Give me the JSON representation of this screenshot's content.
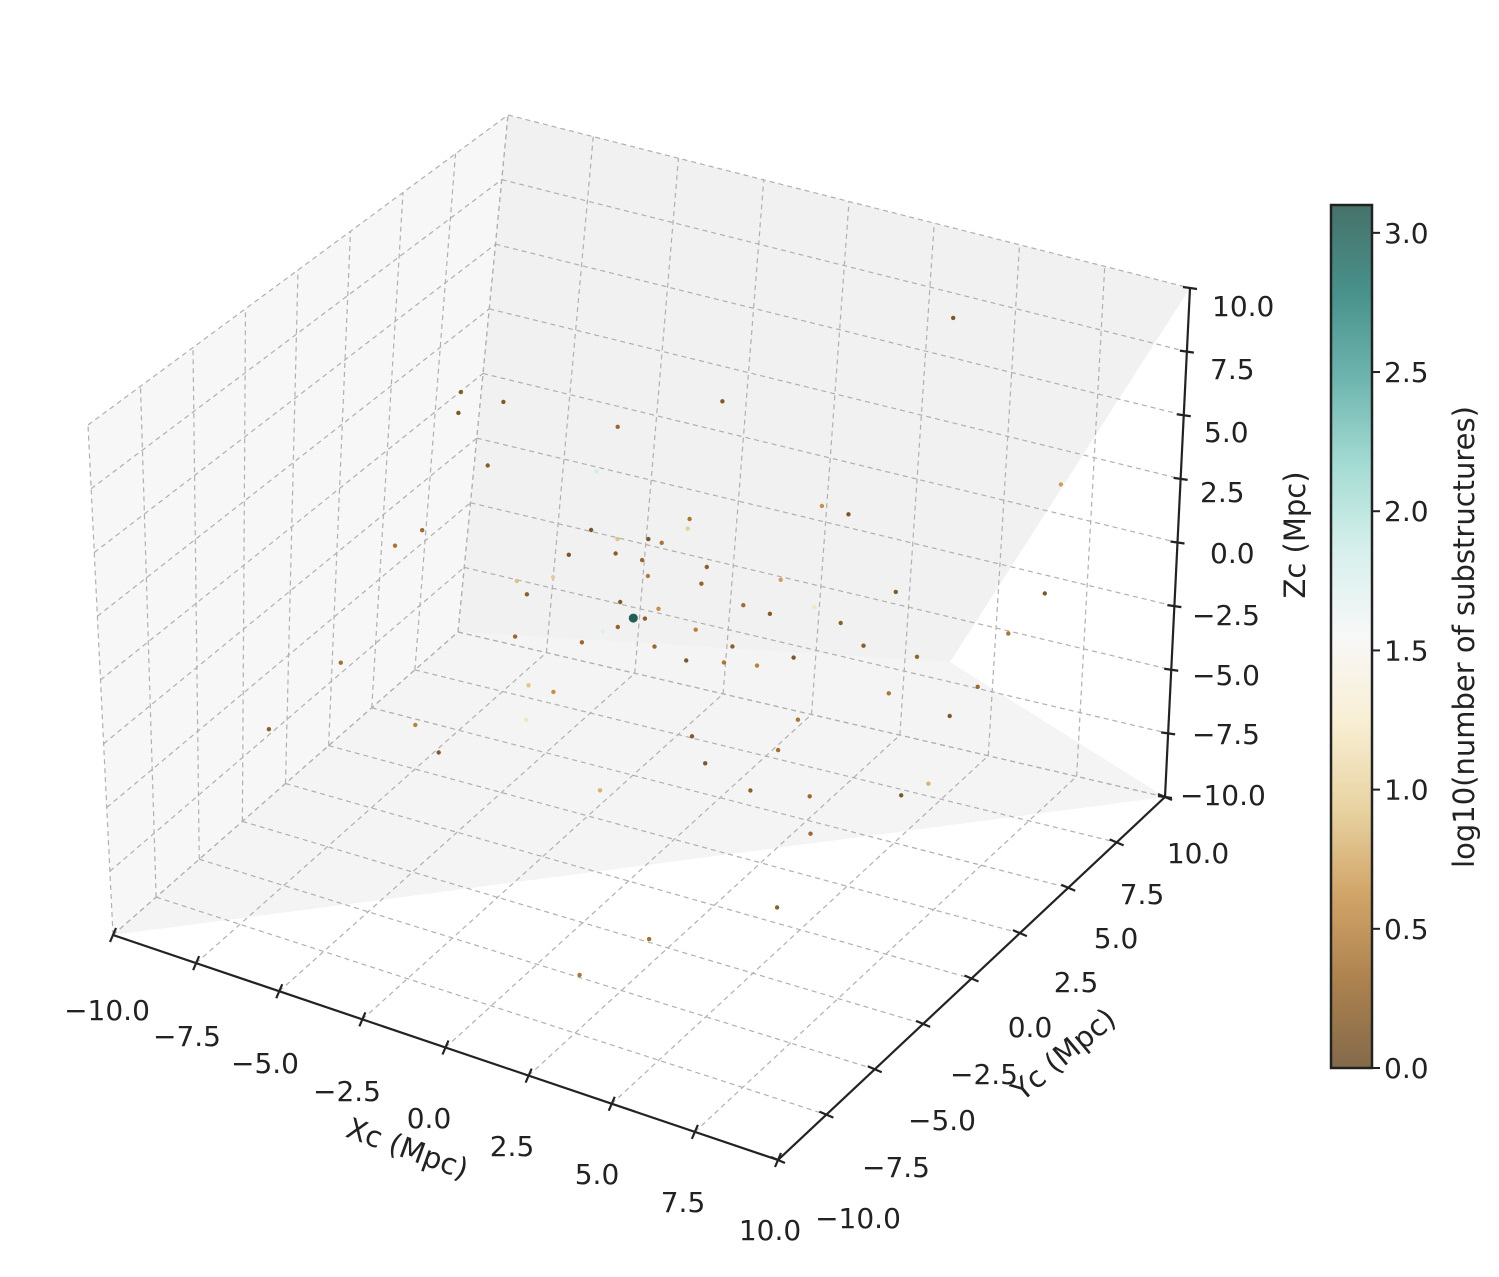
{
  "chart_data": {
    "type": "scatter3d",
    "axes": {
      "x": {
        "label": "Xc (Mpc)",
        "lim": [
          -10,
          10
        ],
        "ticks": [
          -10.0,
          -7.5,
          -5.0,
          -2.5,
          0.0,
          2.5,
          5.0,
          7.5,
          10.0
        ],
        "tick_labels": [
          "−10.0",
          "−7.5",
          "−5.0",
          "−2.5",
          "0.0",
          "2.5",
          "5.0",
          "7.5",
          "10.0"
        ]
      },
      "y": {
        "label": "Yc (Mpc)",
        "lim": [
          -10,
          10
        ],
        "ticks": [
          -10.0,
          -7.5,
          -5.0,
          -2.5,
          0.0,
          2.5,
          5.0,
          7.5,
          10.0
        ],
        "tick_labels": [
          "−10.0",
          "−7.5",
          "−5.0",
          "−2.5",
          "0.0",
          "2.5",
          "5.0",
          "7.5",
          "10.0"
        ]
      },
      "z": {
        "label": "Zc (Mpc)",
        "lim": [
          -10,
          10
        ],
        "ticks": [
          -10.0,
          -7.5,
          -5.0,
          -2.5,
          0.0,
          2.5,
          5.0,
          7.5,
          10.0
        ],
        "tick_labels": [
          "−10.0",
          "−7.5",
          "−5.0",
          "−2.5",
          "0.0",
          "2.5",
          "5.0",
          "7.5",
          "10.0"
        ]
      }
    },
    "grid": true,
    "colorbar": {
      "label": "log10(number of substructures)",
      "range": [
        0.0,
        3.1
      ],
      "ticks": [
        0.0,
        0.5,
        1.0,
        1.5,
        2.0,
        2.5,
        3.0
      ],
      "tick_labels": [
        "0.0",
        "0.5",
        "1.0",
        "1.5",
        "2.0",
        "2.5",
        "3.0"
      ],
      "colormap": "BrBG",
      "colormap_stops": [
        "#543005",
        "#8c510a",
        "#bf812d",
        "#dfc27d",
        "#f6e8c3",
        "#f5f5f5",
        "#c7eae5",
        "#80cdc1",
        "#35978f",
        "#01665e",
        "#003c30"
      ]
    },
    "legend": "none",
    "points": [
      {
        "x": -0.5,
        "y": 0.8,
        "z": -0.2,
        "c": 3.05
      },
      {
        "x": -1.2,
        "y": 0.5,
        "z": -0.8,
        "c": 1.75
      },
      {
        "x": -4.0,
        "y": 5.0,
        "z": 1.4,
        "c": 1.8
      },
      {
        "x": -1.5,
        "y": 3.0,
        "z": 0.2,
        "c": 0.3
      },
      {
        "x": -2.0,
        "y": 2.5,
        "z": 0.6,
        "c": 0.2
      },
      {
        "x": -2.5,
        "y": 3.5,
        "z": 0.3,
        "c": 0.9
      },
      {
        "x": 0.0,
        "y": 1.2,
        "z": 0.1,
        "c": 0.6
      },
      {
        "x": -0.8,
        "y": 2.0,
        "z": 2.0,
        "c": 0.1
      },
      {
        "x": -0.3,
        "y": 1.8,
        "z": 2.2,
        "c": 0.4
      },
      {
        "x": 0.8,
        "y": 2.2,
        "z": 1.4,
        "c": 0.2
      },
      {
        "x": 1.2,
        "y": 1.0,
        "z": -0.1,
        "c": 0.5
      },
      {
        "x": -0.5,
        "y": 0.0,
        "z": 0.0,
        "c": 0.25
      },
      {
        "x": -1.0,
        "y": 1.0,
        "z": 0.1,
        "c": 0.15
      },
      {
        "x": 0.3,
        "y": 0.5,
        "z": -0.8,
        "c": 0.3
      },
      {
        "x": 1.5,
        "y": 0.0,
        "z": -0.5,
        "c": 0.1
      },
      {
        "x": -3.5,
        "y": 2.0,
        "z": -0.6,
        "c": 1.0
      },
      {
        "x": -4.0,
        "y": 1.0,
        "z": -0.3,
        "c": 0.9
      },
      {
        "x": -2.8,
        "y": 1.5,
        "z": 0.9,
        "c": 0.1
      },
      {
        "x": -0.5,
        "y": 5.0,
        "z": 5.5,
        "c": 0.15
      },
      {
        "x": 3.0,
        "y": 5.5,
        "z": 2.0,
        "c": 0.1
      },
      {
        "x": 3.5,
        "y": 9.5,
        "z": 7.0,
        "c": 0.1
      },
      {
        "x": 2.5,
        "y": 5.0,
        "z": 2.5,
        "c": 0.6
      },
      {
        "x": -1.0,
        "y": 4.5,
        "z": 1.0,
        "c": 0.4
      },
      {
        "x": -0.5,
        "y": 3.5,
        "z": 1.5,
        "c": 1.0
      },
      {
        "x": 2.5,
        "y": 3.0,
        "z": 1.0,
        "c": 0.7
      },
      {
        "x": -4.0,
        "y": 6.0,
        "z": 2.5,
        "c": 0.3
      },
      {
        "x": 3.5,
        "y": 3.0,
        "z": 0.3,
        "c": 1.2
      },
      {
        "x": 4.0,
        "y": 3.5,
        "z": -0.5,
        "c": 0.2
      },
      {
        "x": 5.0,
        "y": 4.5,
        "z": 0.4,
        "c": 0.15
      },
      {
        "x": 3.0,
        "y": 1.0,
        "z": -0.8,
        "c": 0.5
      },
      {
        "x": 3.5,
        "y": 2.0,
        "z": -1.0,
        "c": 0.1
      },
      {
        "x": 2.0,
        "y": 1.5,
        "z": -0.8,
        "c": 0.2
      },
      {
        "x": 2.0,
        "y": 2.0,
        "z": 0.5,
        "c": 0.35
      },
      {
        "x": 2.5,
        "y": 2.5,
        "z": 0.0,
        "c": 0.15
      },
      {
        "x": 6.5,
        "y": 3.0,
        "z": -0.5,
        "c": 0.25
      },
      {
        "x": 6.0,
        "y": 2.5,
        "z": -1.8,
        "c": 0.4
      },
      {
        "x": 5.5,
        "y": 2.0,
        "z": 0.3,
        "c": 0.2
      },
      {
        "x": 8.5,
        "y": 6.5,
        "z": 4.5,
        "c": 0.7
      },
      {
        "x": 9.0,
        "y": 5.0,
        "z": 1.5,
        "c": 0.1
      },
      {
        "x": 8.0,
        "y": 3.5,
        "z": -1.5,
        "c": 0.3
      },
      {
        "x": 7.5,
        "y": 3.0,
        "z": -2.5,
        "c": 0.1
      },
      {
        "x": 7.5,
        "y": 2.0,
        "z": -4.5,
        "c": 0.8
      },
      {
        "x": 7.0,
        "y": 1.5,
        "z": -4.8,
        "c": 0.1
      },
      {
        "x": 8.0,
        "y": 5.0,
        "z": -0.5,
        "c": 0.4
      },
      {
        "x": 4.5,
        "y": -0.5,
        "z": -2.5,
        "c": 0.35
      },
      {
        "x": 4.5,
        "y": 0.5,
        "z": -2.0,
        "c": 0.4
      },
      {
        "x": 4.0,
        "y": -1.0,
        "z": -4.0,
        "c": 0.2
      },
      {
        "x": 2.0,
        "y": -0.5,
        "z": -3.0,
        "c": 0.15
      },
      {
        "x": 5.5,
        "y": -0.5,
        "z": -5.5,
        "c": 0.3
      },
      {
        "x": -2.5,
        "y": -1.0,
        "z": -2.5,
        "c": 0.9
      },
      {
        "x": -2.0,
        "y": -2.0,
        "z": -3.0,
        "c": 1.2
      },
      {
        "x": -1.5,
        "y": -1.5,
        "z": -2.0,
        "c": 0.6
      },
      {
        "x": -3.0,
        "y": 3.0,
        "z": 0.8,
        "c": 0.1
      },
      {
        "x": -6.5,
        "y": 0.5,
        "z": 1.0,
        "c": 0.3
      },
      {
        "x": -7.0,
        "y": 0.0,
        "z": 0.5,
        "c": 0.4
      },
      {
        "x": -8.0,
        "y": 5.0,
        "z": 3.0,
        "c": 0.2
      },
      {
        "x": -7.5,
        "y": 4.0,
        "z": 3.0,
        "c": 0.1
      },
      {
        "x": -6.5,
        "y": 4.5,
        "z": 3.5,
        "c": 0.15
      },
      {
        "x": -5.5,
        "y": 2.0,
        "z": 3.0,
        "c": 0.2
      },
      {
        "x": -9.0,
        "y": 1.0,
        "z": -5.5,
        "c": 0.35
      },
      {
        "x": -9.5,
        "y": -2.0,
        "z": -6.5,
        "c": 0.2
      },
      {
        "x": -5.5,
        "y": -1.5,
        "z": -5.0,
        "c": 0.5
      },
      {
        "x": -4.0,
        "y": -3.0,
        "z": -4.5,
        "c": 0.15
      },
      {
        "x": -4.0,
        "y": 1.0,
        "z": -2.5,
        "c": 0.3
      },
      {
        "x": -4.5,
        "y": 2.5,
        "z": -2.0,
        "c": 0.2
      },
      {
        "x": 1.0,
        "y": -3.5,
        "z": -3.5,
        "c": 0.8
      },
      {
        "x": 3.5,
        "y": -2.5,
        "z": -2.0,
        "c": 0.1
      },
      {
        "x": 6.0,
        "y": -1.5,
        "z": -3.0,
        "c": 0.3
      },
      {
        "x": 5.0,
        "y": -8.0,
        "z": -4.5,
        "c": 0.35
      },
      {
        "x": 3.5,
        "y": -9.0,
        "z": -6.0,
        "c": 0.4
      },
      {
        "x": 6.5,
        "y": -4.0,
        "z": -5.5,
        "c": 0.2
      },
      {
        "x": 1.5,
        "y": 2.0,
        "z": -2.0,
        "c": 0.4
      },
      {
        "x": 0.0,
        "y": 0.5,
        "z": 0.2,
        "c": 0.2
      },
      {
        "x": -0.5,
        "y": 1.5,
        "z": 1.0,
        "c": 0.45
      },
      {
        "x": -1.8,
        "y": 0.5,
        "z": -1.5,
        "c": 0.3
      },
      {
        "x": 0.5,
        "y": 2.5,
        "z": 0.4,
        "c": 0.25
      }
    ]
  }
}
